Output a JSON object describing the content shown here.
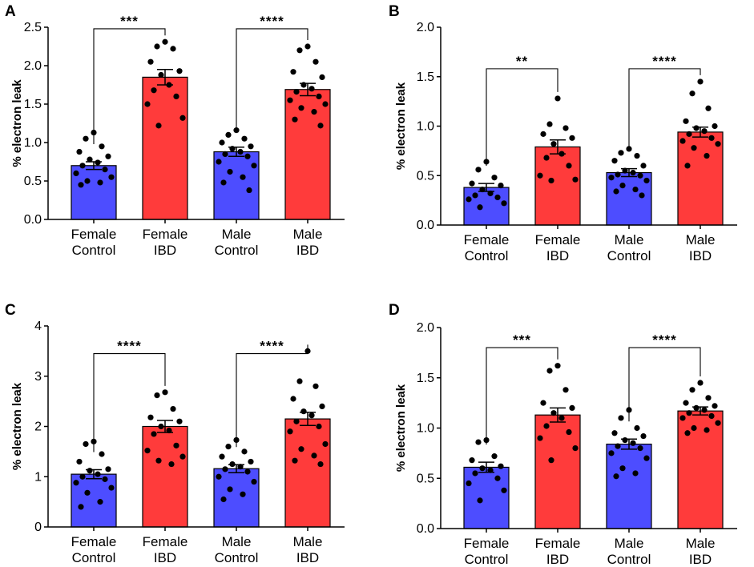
{
  "colors": {
    "control": "#4d4dff",
    "ibd": "#ff3b3b",
    "axis": "#000000",
    "point": "#000000"
  },
  "chart_data": [
    {
      "panel": "A",
      "type": "bar",
      "ylabel": "% electron leak",
      "categories": [
        "Female Control",
        "Female IBD",
        "Male Control",
        "Male IBD"
      ],
      "category_lines": [
        [
          "Female",
          "Control"
        ],
        [
          "Female",
          "IBD"
        ],
        [
          "Male",
          "Control"
        ],
        [
          "Male",
          "IBD"
        ]
      ],
      "ylim": [
        0,
        2.5
      ],
      "yticks": [
        "0.0",
        "0.5",
        "1.0",
        "1.5",
        "2.0",
        "2.5"
      ],
      "series": [
        {
          "name": "% electron leak",
          "values": [
            0.7,
            1.85,
            0.88,
            1.69
          ],
          "sem": [
            0.05,
            0.1,
            0.06,
            0.08
          ]
        }
      ],
      "points": [
        [
          1.13,
          1.05,
          0.95,
          0.88,
          0.82,
          0.78,
          0.74,
          0.7,
          0.65,
          0.6,
          0.55,
          0.5,
          0.48,
          0.45
        ],
        [
          2.31,
          2.25,
          2.22,
          2.05,
          1.93,
          1.88,
          1.75,
          1.68,
          1.6,
          1.5,
          1.32,
          1.22
        ],
        [
          1.16,
          1.1,
          1.05,
          1.0,
          0.95,
          0.92,
          0.88,
          0.85,
          0.82,
          0.75,
          0.7,
          0.62,
          0.55,
          0.48,
          0.38
        ],
        [
          2.25,
          2.2,
          2.05,
          1.92,
          1.85,
          1.75,
          1.7,
          1.66,
          1.6,
          1.55,
          1.5,
          1.45,
          1.4,
          1.3,
          1.22
        ]
      ],
      "comparisons": [
        {
          "groups": [
            0,
            1
          ],
          "label": "***",
          "level": 2.48
        },
        {
          "groups": [
            2,
            3
          ],
          "label": "****",
          "level": 2.48
        }
      ]
    },
    {
      "panel": "B",
      "type": "bar",
      "ylabel": "% electron leak",
      "categories": [
        "Female Control",
        "Female IBD",
        "Male Control",
        "Male IBD"
      ],
      "category_lines": [
        [
          "Female",
          "Control"
        ],
        [
          "Female",
          "IBD"
        ],
        [
          "Male",
          "Control"
        ],
        [
          "Male",
          "IBD"
        ]
      ],
      "ylim": [
        0,
        2.0
      ],
      "yticks": [
        "0.0",
        "0.5",
        "1.0",
        "1.5",
        "2.0"
      ],
      "series": [
        {
          "name": "% electron leak",
          "values": [
            0.38,
            0.79,
            0.53,
            0.94
          ],
          "sem": [
            0.04,
            0.07,
            0.04,
            0.05
          ]
        }
      ],
      "points": [
        [
          0.64,
          0.56,
          0.48,
          0.42,
          0.4,
          0.36,
          0.32,
          0.3,
          0.28,
          0.26,
          0.22,
          0.18
        ],
        [
          1.28,
          1.02,
          0.98,
          0.92,
          0.88,
          0.82,
          0.72,
          0.68,
          0.6,
          0.5,
          0.46,
          0.45
        ],
        [
          0.77,
          0.73,
          0.7,
          0.65,
          0.6,
          0.55,
          0.53,
          0.51,
          0.5,
          0.48,
          0.45,
          0.4,
          0.36,
          0.34,
          0.3
        ],
        [
          1.45,
          1.33,
          1.18,
          1.05,
          1.0,
          0.98,
          0.95,
          0.92,
          0.88,
          0.85,
          0.82,
          0.78,
          0.7,
          0.6
        ]
      ],
      "comparisons": [
        {
          "groups": [
            0,
            1
          ],
          "label": "**",
          "level": 1.58
        },
        {
          "groups": [
            2,
            3
          ],
          "label": "****",
          "level": 1.58
        }
      ]
    },
    {
      "panel": "C",
      "type": "bar",
      "ylabel": "% electron leak",
      "categories": [
        "Female Control",
        "Female IBD",
        "Male Control",
        "Male IBD"
      ],
      "category_lines": [
        [
          "Female",
          "Control"
        ],
        [
          "Female",
          "IBD"
        ],
        [
          "Male",
          "Control"
        ],
        [
          "Male",
          "IBD"
        ]
      ],
      "ylim": [
        0,
        4
      ],
      "yticks": [
        "0",
        "1",
        "2",
        "3",
        "4"
      ],
      "series": [
        {
          "name": "% electron leak",
          "values": [
            1.05,
            2.0,
            1.16,
            2.15
          ],
          "sem": [
            0.09,
            0.12,
            0.08,
            0.13
          ]
        }
      ],
      "points": [
        [
          1.7,
          1.65,
          1.45,
          1.3,
          1.15,
          1.12,
          1.05,
          1.0,
          0.95,
          0.88,
          0.78,
          0.68,
          0.5,
          0.4
        ],
        [
          2.68,
          2.62,
          2.35,
          2.18,
          2.1,
          2.0,
          1.92,
          1.85,
          1.62,
          1.52,
          1.4,
          1.32,
          1.25
        ],
        [
          1.73,
          1.6,
          1.5,
          1.4,
          1.3,
          1.25,
          1.2,
          1.15,
          1.1,
          1.0,
          0.9,
          0.75,
          0.65,
          0.55
        ],
        [
          3.5,
          2.9,
          2.8,
          2.55,
          2.4,
          2.3,
          2.22,
          2.1,
          2.0,
          1.9,
          1.65,
          1.55,
          1.42,
          1.32,
          1.25
        ]
      ],
      "comparisons": [
        {
          "groups": [
            0,
            1
          ],
          "label": "****",
          "level": 3.45
        },
        {
          "groups": [
            2,
            3
          ],
          "label": "****",
          "level": 3.45
        }
      ]
    },
    {
      "panel": "D",
      "type": "bar",
      "ylabel": "% electron leak",
      "categories": [
        "Female Control",
        "Female IBD",
        "Male Control",
        "Male IBD"
      ],
      "category_lines": [
        [
          "Female",
          "Control"
        ],
        [
          "Female",
          "IBD"
        ],
        [
          "Male",
          "Control"
        ],
        [
          "Male",
          "IBD"
        ]
      ],
      "ylim": [
        0,
        2.0
      ],
      "yticks": [
        "0.0",
        "0.5",
        "1.0",
        "1.5",
        "2.0"
      ],
      "series": [
        {
          "name": "% electron leak",
          "values": [
            0.61,
            1.13,
            0.84,
            1.17
          ],
          "sem": [
            0.05,
            0.07,
            0.05,
            0.04
          ]
        }
      ],
      "points": [
        [
          0.88,
          0.86,
          0.72,
          0.68,
          0.62,
          0.6,
          0.58,
          0.55,
          0.5,
          0.45,
          0.38,
          0.28
        ],
        [
          1.62,
          1.57,
          1.38,
          1.25,
          1.2,
          1.15,
          1.1,
          1.02,
          0.96,
          0.9,
          0.8,
          0.68
        ],
        [
          1.18,
          1.1,
          1.0,
          0.95,
          0.92,
          0.88,
          0.85,
          0.82,
          0.8,
          0.75,
          0.7,
          0.6,
          0.55,
          0.52
        ],
        [
          1.45,
          1.38,
          1.3,
          1.25,
          1.22,
          1.2,
          1.18,
          1.15,
          1.12,
          1.1,
          1.05,
          1.0,
          0.98,
          0.95
        ]
      ],
      "comparisons": [
        {
          "groups": [
            0,
            1
          ],
          "label": "***",
          "level": 1.8
        },
        {
          "groups": [
            2,
            3
          ],
          "label": "****",
          "level": 1.8
        }
      ]
    }
  ]
}
